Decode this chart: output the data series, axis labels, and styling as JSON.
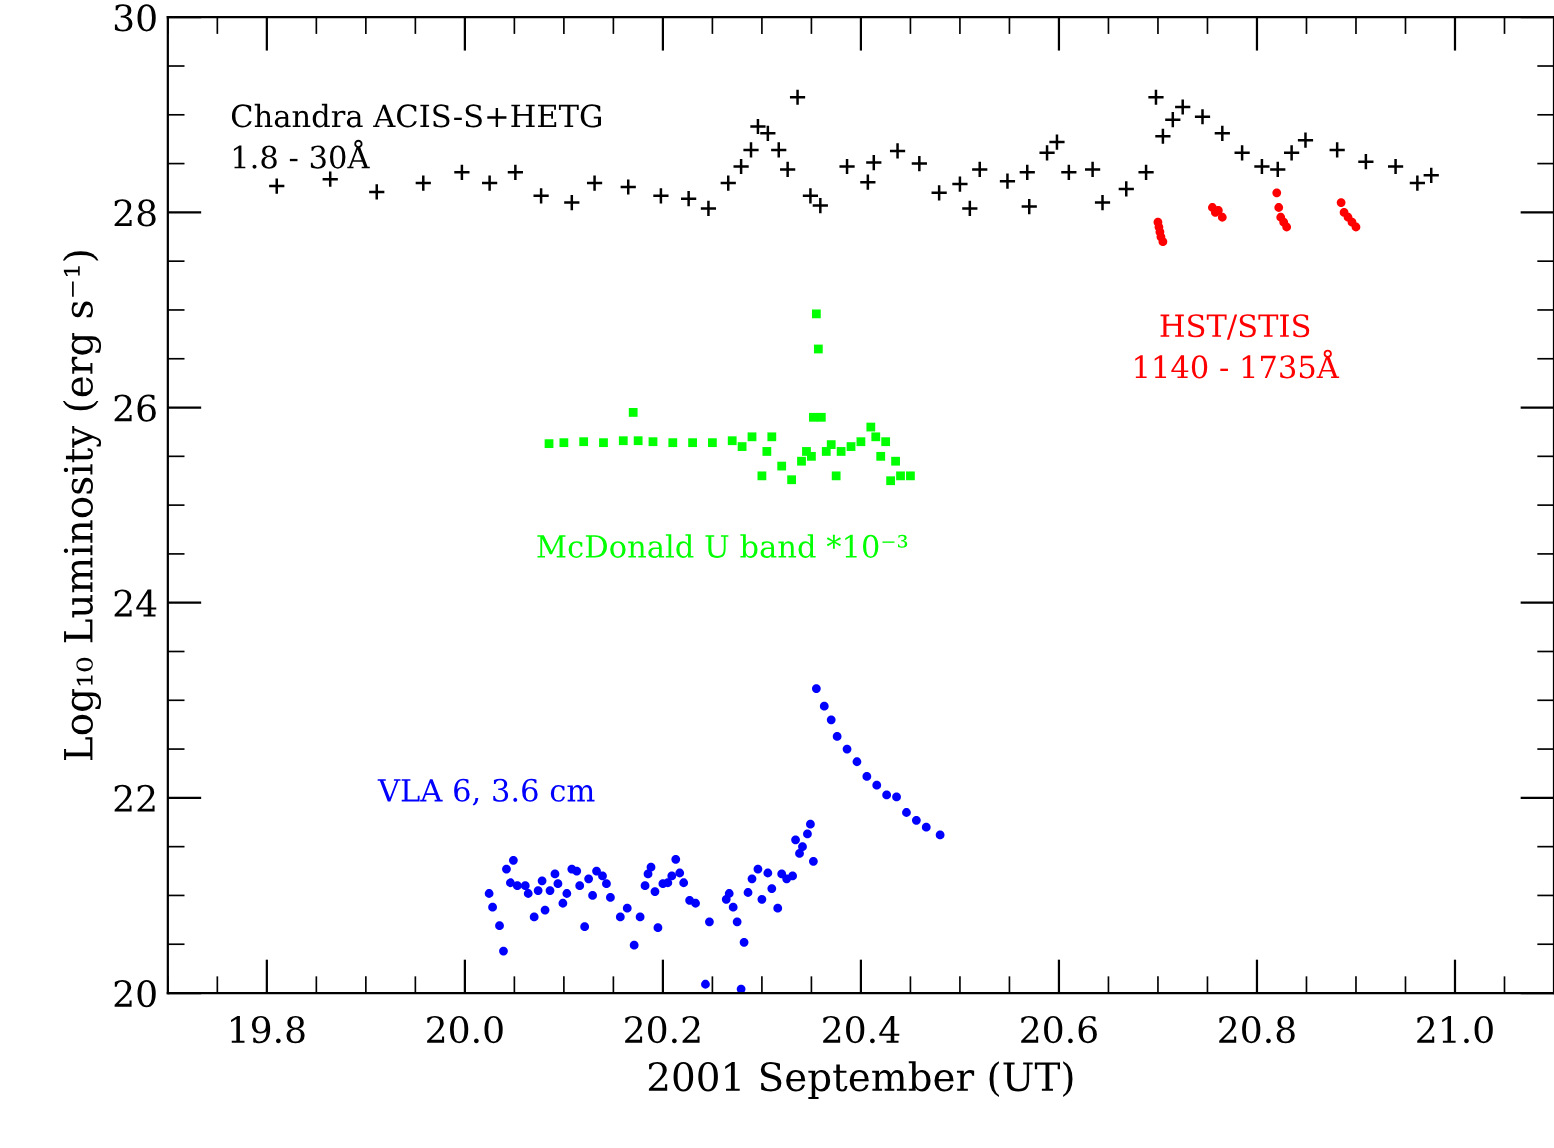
{
  "chart_data": {
    "type": "scatter",
    "xlabel": "2001 September (UT)",
    "ylabel": "Log₁₀ Luminosity (erg s⁻¹)",
    "xlim": [
      19.7,
      21.1
    ],
    "ylim": [
      20,
      30
    ],
    "xticks": [
      {
        "value": 19.8,
        "label": "19.8"
      },
      {
        "value": 20.0,
        "label": "20.0"
      },
      {
        "value": 20.2,
        "label": "20.2"
      },
      {
        "value": 20.4,
        "label": "20.4"
      },
      {
        "value": 20.6,
        "label": "20.6"
      },
      {
        "value": 20.8,
        "label": "20.8"
      },
      {
        "value": 21.0,
        "label": "21.0"
      }
    ],
    "yticks": [
      20,
      22,
      24,
      26,
      28,
      30
    ],
    "grid": false,
    "legend": false,
    "series": [
      {
        "name": "Chandra ACIS-S+HETG\n1.8 - 30Å",
        "color": "#000000",
        "marker": "cross",
        "x": [
          19.81,
          19.864,
          19.911,
          19.958,
          19.997,
          20.025,
          20.051,
          20.077,
          20.108,
          20.131,
          20.165,
          20.198,
          20.226,
          20.246,
          20.266,
          20.279,
          20.289,
          20.296,
          20.306,
          20.317,
          20.326,
          20.336,
          20.349,
          20.359,
          20.386,
          20.407,
          20.413,
          20.437,
          20.459,
          20.479,
          20.5,
          20.51,
          20.52,
          20.548,
          20.568,
          20.57,
          20.588,
          20.598,
          20.61,
          20.634,
          20.644,
          20.668,
          20.688,
          20.698,
          20.705,
          20.715,
          20.725,
          20.745,
          20.765,
          20.785,
          20.805,
          20.821,
          20.835,
          20.849,
          20.881,
          20.91,
          20.94,
          20.962,
          20.976
        ],
        "values": [
          28.27,
          28.34,
          28.21,
          28.3,
          28.41,
          28.3,
          28.41,
          28.17,
          28.1,
          28.3,
          28.26,
          28.17,
          28.14,
          28.04,
          28.3,
          28.47,
          28.64,
          28.88,
          28.81,
          28.64,
          28.44,
          29.18,
          28.17,
          28.07,
          28.47,
          28.31,
          28.51,
          28.63,
          28.5,
          28.2,
          28.29,
          28.04,
          28.44,
          28.32,
          28.41,
          28.06,
          28.61,
          28.72,
          28.41,
          28.44,
          28.1,
          28.24,
          28.41,
          29.18,
          28.78,
          28.95,
          29.08,
          28.98,
          28.81,
          28.61,
          28.47,
          28.44,
          28.61,
          28.74,
          28.64,
          28.52,
          28.47,
          28.3,
          28.38
        ]
      },
      {
        "name": "HST/STIS\n1140 - 1735Å",
        "color": "#ff0000",
        "marker": "circle",
        "x": [
          20.7,
          20.701,
          20.702,
          20.703,
          20.705,
          20.755,
          20.758,
          20.761,
          20.765,
          20.82,
          20.822,
          20.824,
          20.827,
          20.83,
          20.885,
          20.888,
          20.892,
          20.896,
          20.9
        ],
        "values": [
          27.9,
          27.85,
          27.8,
          27.75,
          27.7,
          28.05,
          28.0,
          28.02,
          27.95,
          28.2,
          28.05,
          27.95,
          27.9,
          27.85,
          28.1,
          28.0,
          27.95,
          27.9,
          27.85
        ]
      },
      {
        "name": "McDonald U band *10⁻³",
        "color": "#00ff00",
        "marker": "square",
        "x": [
          20.085,
          20.1,
          20.12,
          20.14,
          20.16,
          20.17,
          20.175,
          20.19,
          20.21,
          20.23,
          20.25,
          20.27,
          20.28,
          20.29,
          20.3,
          20.305,
          20.31,
          20.32,
          20.33,
          20.34,
          20.345,
          20.35,
          20.352,
          20.355,
          20.357,
          20.36,
          20.365,
          20.37,
          20.375,
          20.38,
          20.39,
          20.4,
          20.41,
          20.415,
          20.42,
          20.425,
          20.43,
          20.435,
          20.44,
          20.45
        ],
        "values": [
          25.63,
          25.64,
          25.65,
          25.64,
          25.66,
          25.95,
          25.66,
          25.65,
          25.64,
          25.64,
          25.64,
          25.66,
          25.6,
          25.7,
          25.3,
          25.55,
          25.7,
          25.4,
          25.26,
          25.45,
          25.55,
          25.5,
          25.9,
          26.96,
          26.6,
          25.9,
          25.55,
          25.62,
          25.3,
          25.55,
          25.6,
          25.65,
          25.8,
          25.7,
          25.5,
          25.65,
          25.25,
          25.45,
          25.3,
          25.3
        ]
      },
      {
        "name": "VLA 6, 3.6 cm",
        "color": "#0000ff",
        "marker": "circle",
        "x": [
          20.0245,
          20.028,
          20.035,
          20.039,
          20.042,
          20.046,
          20.049,
          20.053,
          20.061,
          20.064,
          20.07,
          20.074,
          20.078,
          20.081,
          20.086,
          20.091,
          20.094,
          20.099,
          20.103,
          20.108,
          20.113,
          20.116,
          20.121,
          20.125,
          20.129,
          20.133,
          20.139,
          20.143,
          20.147,
          20.157,
          20.164,
          20.171,
          20.177,
          20.182,
          20.185,
          20.188,
          20.192,
          20.195,
          20.2,
          20.205,
          20.209,
          20.213,
          20.217,
          20.221,
          20.227,
          20.233,
          20.243,
          20.247,
          20.264,
          20.267,
          20.271,
          20.275,
          20.279,
          20.282,
          20.286,
          20.29,
          20.296,
          20.3,
          20.306,
          20.31,
          20.316,
          20.32,
          20.325,
          20.331,
          20.334,
          20.338,
          20.341,
          20.346,
          20.349,
          20.352,
          20.355,
          20.363,
          20.37,
          20.376,
          20.386,
          20.396,
          20.406,
          20.416,
          20.426,
          20.436,
          20.446,
          20.456,
          20.466,
          20.48
        ],
        "values": [
          21.02,
          20.88,
          20.69,
          20.43,
          21.27,
          21.13,
          21.36,
          21.1,
          21.1,
          21.02,
          20.78,
          21.05,
          21.15,
          20.85,
          21.05,
          21.22,
          21.12,
          20.92,
          21.02,
          21.27,
          21.25,
          21.1,
          20.68,
          21.17,
          21.0,
          21.25,
          21.2,
          21.12,
          20.98,
          20.78,
          20.87,
          20.49,
          20.78,
          21.1,
          21.22,
          21.29,
          21.04,
          20.67,
          21.12,
          21.13,
          21.2,
          21.37,
          21.23,
          21.13,
          20.95,
          20.92,
          20.09,
          20.73,
          20.96,
          21.02,
          20.88,
          20.73,
          20.04,
          20.52,
          21.03,
          21.17,
          21.27,
          20.96,
          21.23,
          21.07,
          20.87,
          21.22,
          21.17,
          21.2,
          21.57,
          21.43,
          21.5,
          21.63,
          21.73,
          21.35,
          23.12,
          22.94,
          22.8,
          22.63,
          22.5,
          22.37,
          22.22,
          22.13,
          22.03,
          22.01,
          21.85,
          21.77,
          21.7,
          21.62
        ]
      }
    ]
  }
}
